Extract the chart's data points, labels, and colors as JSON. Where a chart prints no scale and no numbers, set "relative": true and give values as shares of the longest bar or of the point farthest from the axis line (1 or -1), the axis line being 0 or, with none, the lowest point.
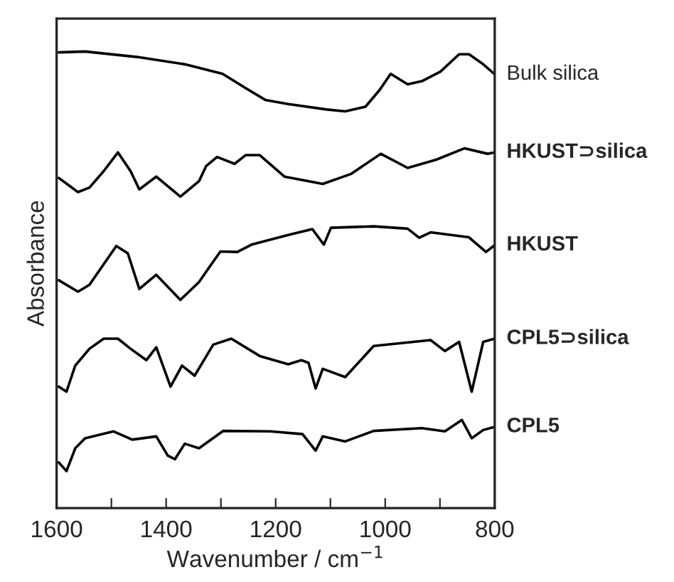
{
  "chart_data": {
    "type": "line",
    "relative": true,
    "xlabel": "Wavenumber / cm$^{−1}$",
    "ylabel": "Absorbance",
    "xlim": [
      1600,
      800
    ],
    "xticks": [
      1600,
      {
        "value": 1500,
        "label": null
      },
      1400,
      {
        "value": 1300,
        "label": null
      },
      1200,
      {
        "value": 1100,
        "label": null
      },
      1000,
      {
        "value": 900,
        "label": null
      },
      800
    ],
    "grid": false,
    "legend": false,
    "marker": "none",
    "line_style": "solid",
    "series": [
      {
        "name": "Bulk silica",
        "color": "#000000",
        "x": [
          1596,
          1548,
          1453,
          1366,
          1297,
          1255,
          1219,
          1177,
          1107,
          1073,
          1036,
          1010,
          990,
          959,
          933,
          899,
          865,
          847,
          821,
          800
        ],
        "values": [
          0.998,
          1.0,
          0.988,
          0.972,
          0.951,
          0.92,
          0.894,
          0.885,
          0.873,
          0.869,
          0.879,
          0.916,
          0.951,
          0.928,
          0.935,
          0.956,
          0.994,
          0.994,
          0.972,
          0.95
        ]
      },
      {
        "name": "HKUST⊃silica",
        "color": "#000000",
        "x": [
          1596,
          1561,
          1540,
          1514,
          1488,
          1465,
          1449,
          1418,
          1374,
          1340,
          1327,
          1307,
          1275,
          1255,
          1229,
          1184,
          1114,
          1062,
          1008,
          959,
          907,
          855,
          813,
          800
        ],
        "values": [
          0.723,
          0.692,
          0.702,
          0.738,
          0.779,
          0.738,
          0.698,
          0.726,
          0.682,
          0.716,
          0.749,
          0.769,
          0.754,
          0.773,
          0.773,
          0.726,
          0.71,
          0.732,
          0.776,
          0.745,
          0.763,
          0.788,
          0.776,
          0.779
        ]
      },
      {
        "name": "HKUST",
        "color": "#000000",
        "x": [
          1596,
          1561,
          1540,
          1491,
          1470,
          1449,
          1418,
          1374,
          1340,
          1322,
          1301,
          1270,
          1244,
          1177,
          1133,
          1112,
          1099,
          1021,
          959,
          938,
          917,
          847,
          816,
          800
        ],
        "values": [
          0.499,
          0.474,
          0.489,
          0.574,
          0.558,
          0.48,
          0.511,
          0.456,
          0.495,
          0.526,
          0.562,
          0.561,
          0.577,
          0.598,
          0.611,
          0.577,
          0.614,
          0.617,
          0.612,
          0.592,
          0.604,
          0.593,
          0.561,
          0.576
        ]
      },
      {
        "name": "CPL5⊃silica",
        "color": "#000000",
        "x": [
          1596,
          1582,
          1566,
          1540,
          1514,
          1488,
          1465,
          1436,
          1418,
          1392,
          1371,
          1348,
          1314,
          1281,
          1229,
          1177,
          1153,
          1140,
          1127,
          1114,
          1073,
          1021,
          917,
          891,
          865,
          842,
          821,
          800
        ],
        "values": [
          0.266,
          0.255,
          0.312,
          0.349,
          0.371,
          0.371,
          0.349,
          0.324,
          0.352,
          0.266,
          0.312,
          0.29,
          0.358,
          0.371,
          0.333,
          0.315,
          0.324,
          0.318,
          0.262,
          0.305,
          0.287,
          0.355,
          0.368,
          0.344,
          0.364,
          0.255,
          0.364,
          0.371
        ]
      },
      {
        "name": "CPL5",
        "color": "#000000",
        "x": [
          1596,
          1582,
          1566,
          1548,
          1496,
          1462,
          1418,
          1397,
          1384,
          1366,
          1340,
          1296,
          1210,
          1151,
          1127,
          1114,
          1073,
          1021,
          933,
          891,
          860,
          842,
          821,
          800
        ],
        "values": [
          0.1,
          0.081,
          0.131,
          0.153,
          0.168,
          0.15,
          0.157,
          0.115,
          0.107,
          0.141,
          0.131,
          0.169,
          0.168,
          0.162,
          0.126,
          0.157,
          0.146,
          0.169,
          0.175,
          0.168,
          0.193,
          0.153,
          0.171,
          0.178
        ]
      }
    ]
  }
}
